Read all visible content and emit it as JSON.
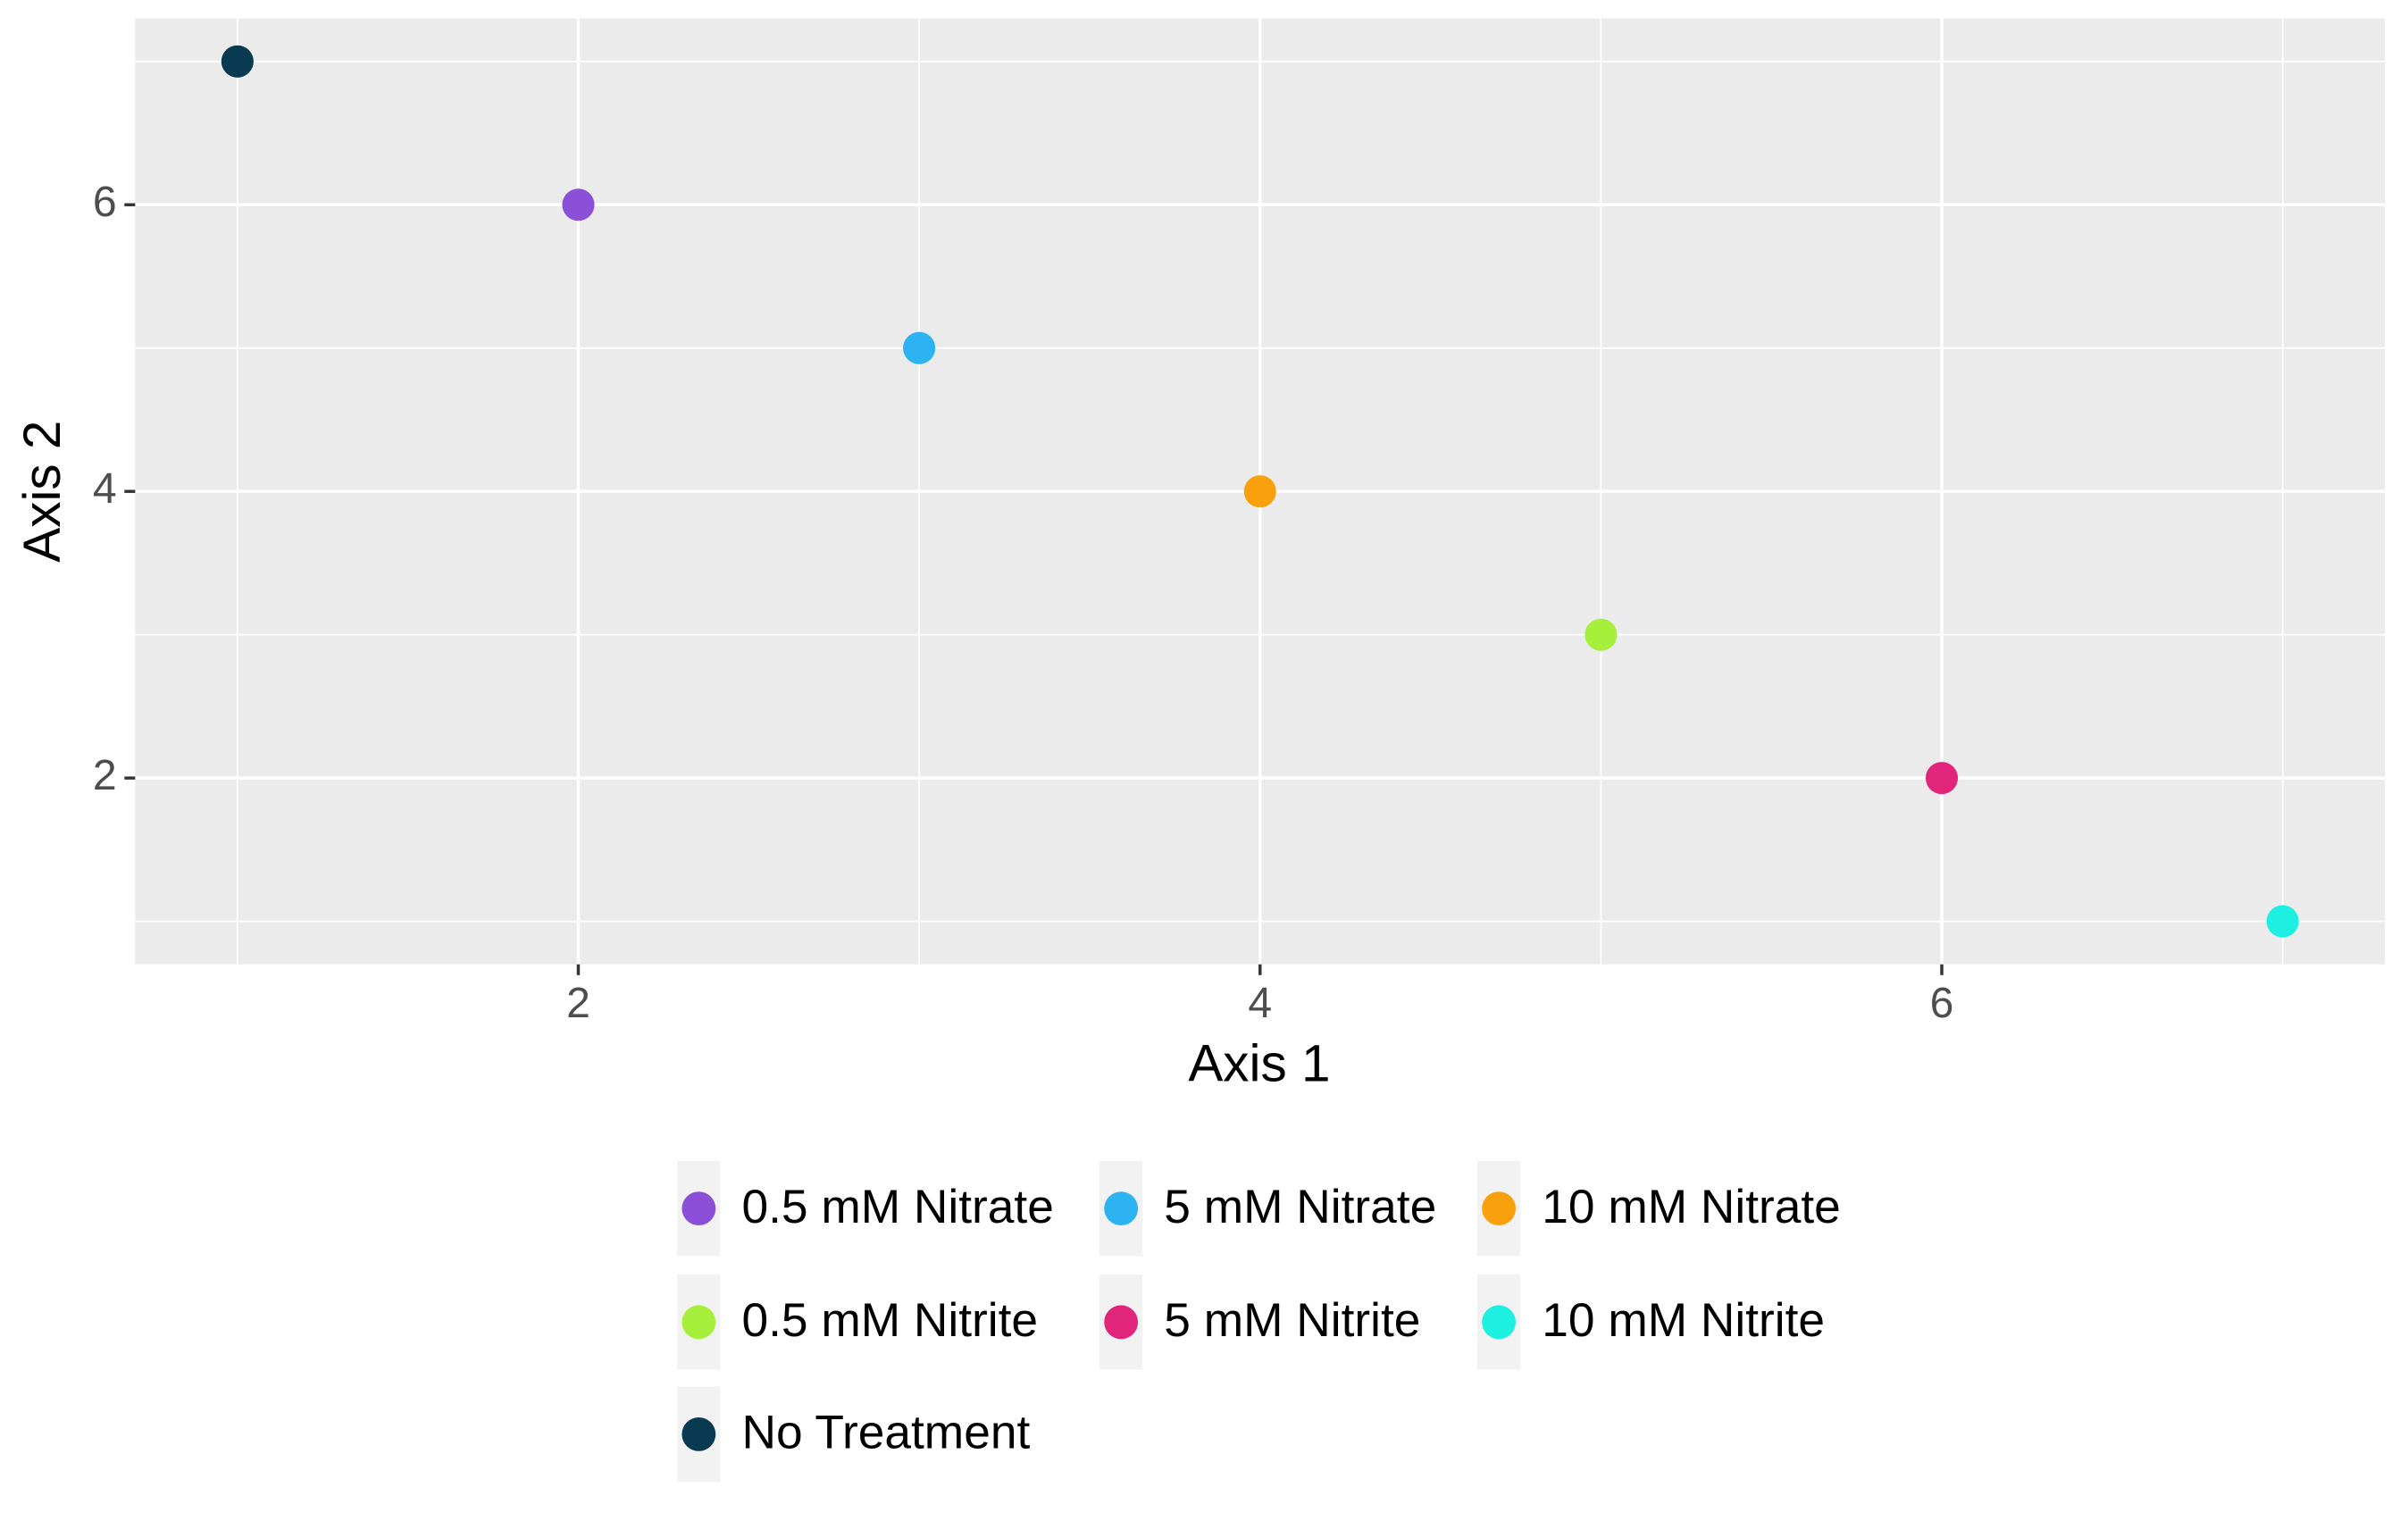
{
  "chart_data": {
    "type": "scatter",
    "x_label": "Axis 1",
    "y_label": "Axis 2",
    "xlim": [
      0.7,
      7.3
    ],
    "ylim": [
      0.7,
      7.3
    ],
    "xticks": [
      2,
      4,
      6
    ],
    "yticks": [
      2,
      4,
      6
    ],
    "x_minor_grid": [
      1,
      3,
      5,
      7
    ],
    "y_minor_grid": [
      1,
      3,
      5,
      7
    ],
    "grid": true,
    "legend_position": "bottom",
    "legend_columns": 3,
    "series": [
      {
        "name": "0.5 mM Nitrate",
        "color": "#8b4fd8",
        "x": [
          2
        ],
        "values": [
          6
        ]
      },
      {
        "name": "5 mM Nitrate",
        "color": "#2db3f2",
        "x": [
          3
        ],
        "values": [
          5
        ]
      },
      {
        "name": "10 mM Nitrate",
        "color": "#f8a10c",
        "x": [
          4
        ],
        "values": [
          4
        ]
      },
      {
        "name": "0.5 mM Nitrite",
        "color": "#a6ef3a",
        "x": [
          5
        ],
        "values": [
          3
        ]
      },
      {
        "name": "5 mM Nitrite",
        "color": "#e0257a",
        "x": [
          6
        ],
        "values": [
          2
        ]
      },
      {
        "name": "10 mM Nitrite",
        "color": "#1df0e0",
        "x": [
          7
        ],
        "values": [
          1
        ]
      },
      {
        "name": "No Treatment",
        "color": "#083a52",
        "x": [
          1
        ],
        "values": [
          7
        ]
      }
    ]
  }
}
